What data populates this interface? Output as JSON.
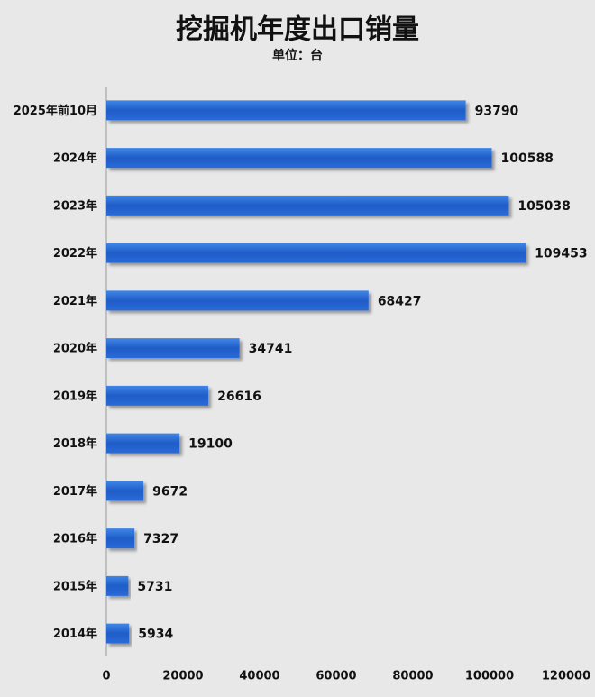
{
  "chart_data": {
    "type": "bar",
    "orientation": "horizontal",
    "title": "挖掘机年度出口销量",
    "subtitle": "单位：台",
    "categories": [
      "2025年前10月",
      "2024年",
      "2023年",
      "2022年",
      "2021年",
      "2020年",
      "2019年",
      "2018年",
      "2017年",
      "2016年",
      "2015年",
      "2014年"
    ],
    "values": [
      93790,
      100588,
      105038,
      109453,
      68427,
      34741,
      26616,
      19100,
      9672,
      7327,
      5731,
      5934
    ],
    "color": "#2563d4",
    "xlim": [
      0,
      120000
    ],
    "xticks": [
      0,
      20000,
      40000,
      60000,
      80000,
      100000,
      120000
    ],
    "grid": false
  }
}
